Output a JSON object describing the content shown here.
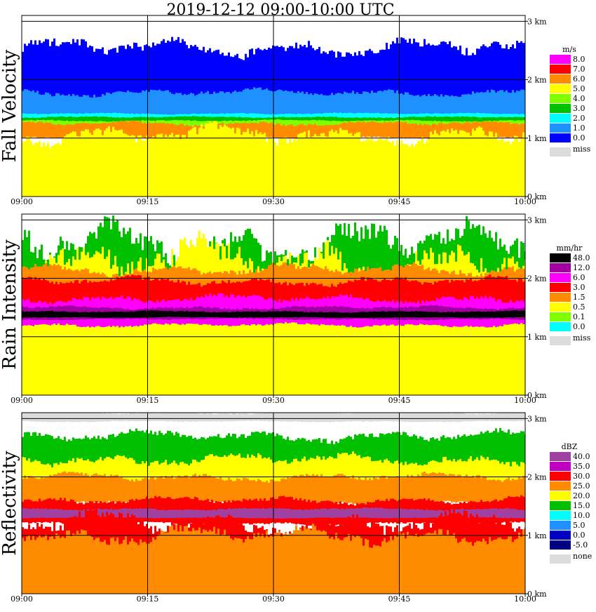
{
  "title": "2019-12-12   09:00-10:00 UTC",
  "chart_data": [
    {
      "type": "heatmap",
      "name": "Fall Velocity",
      "ylabel": "Fall Velocity",
      "x_ticks": [
        "09:00",
        "09:15",
        "09:30",
        "09:45",
        "10:00"
      ],
      "y_ticks": [
        "0 km",
        "1 km",
        "2 km",
        "3 km"
      ],
      "ylim": [
        0,
        3.1
      ],
      "legend": {
        "title": "m/s",
        "entries": [
          {
            "label": "8.0",
            "color": "#ff00ff"
          },
          {
            "label": "7.0",
            "color": "#ff0000"
          },
          {
            "label": "6.0",
            "color": "#ff8c00"
          },
          {
            "label": "5.0",
            "color": "#ffff00"
          },
          {
            "label": "4.0",
            "color": "#80ff00"
          },
          {
            "label": "3.0",
            "color": "#00c000"
          },
          {
            "label": "2.0",
            "color": "#00ffff"
          },
          {
            "label": "1.0",
            "color": "#1e90ff"
          },
          {
            "label": "0.0",
            "color": "#0000ff"
          }
        ],
        "missing": {
          "label": "miss",
          "color": "#dcdcdc"
        }
      },
      "layers": [
        {
          "color": "#0000ff",
          "bottom": 1.55,
          "top": 2.55
        },
        {
          "color": "#1e90ff",
          "bottom": 1.38,
          "top": 1.78
        },
        {
          "color": "#00ffff",
          "bottom": 1.33,
          "top": 1.42
        },
        {
          "color": "#00c000",
          "bottom": 1.27,
          "top": 1.36
        },
        {
          "color": "#80ff00",
          "bottom": 1.2,
          "top": 1.3
        },
        {
          "color": "#ff8c00",
          "bottom": 1.0,
          "top": 1.25
        },
        {
          "color": "#ffff00",
          "bottom": 0.0,
          "top": 1.05
        }
      ]
    },
    {
      "type": "heatmap",
      "name": "Rain Intensity",
      "ylabel": "Rain Intensity",
      "x_ticks": [
        "09:00",
        "09:15",
        "09:30",
        "09:45",
        "10:00"
      ],
      "y_ticks": [
        "0 km",
        "1 km",
        "2 km",
        "3 km"
      ],
      "ylim": [
        0,
        3.1
      ],
      "legend": {
        "title": "mm/hr",
        "entries": [
          {
            "label": "48.0",
            "color": "#000000"
          },
          {
            "label": "12.0",
            "color": "#a000a0"
          },
          {
            "label": "6.0",
            "color": "#ff00ff"
          },
          {
            "label": "3.0",
            "color": "#ff0000"
          },
          {
            "label": "1.5",
            "color": "#ff8c00"
          },
          {
            "label": "0.5",
            "color": "#ffff00"
          },
          {
            "label": "0.1",
            "color": "#80ff00"
          },
          {
            "label": "0.0",
            "color": "#00ffff"
          }
        ],
        "missing": {
          "label": "miss",
          "color": "#dcdcdc"
        }
      },
      "layers": [
        {
          "color": "#00c000",
          "bottom": 0.3,
          "top": 2.6
        },
        {
          "color": "#ffff00",
          "bottom": 0.0,
          "top": 2.3
        },
        {
          "color": "#ff8c00",
          "bottom": 1.5,
          "top": 2.15
        },
        {
          "color": "#ff0000",
          "bottom": 1.45,
          "top": 1.95
        },
        {
          "color": "#ff00ff",
          "bottom": 1.2,
          "top": 1.65
        },
        {
          "color": "#a000a0",
          "bottom": 1.3,
          "top": 1.5
        },
        {
          "color": "#000000",
          "bottom": 1.33,
          "top": 1.43
        }
      ]
    },
    {
      "type": "heatmap",
      "name": "Reflectivity",
      "ylabel": "Reflectivity",
      "x_ticks": [
        "09:00",
        "09:15",
        "09:30",
        "09:45",
        "10:00"
      ],
      "y_ticks": [
        "0 km",
        "1 km",
        "2 km",
        "3 km"
      ],
      "ylim": [
        0,
        3.1
      ],
      "legend": {
        "title": "dBZ",
        "entries": [
          {
            "label": "40.0",
            "color": "#a040a0"
          },
          {
            "label": "35.0",
            "color": "#c000c0"
          },
          {
            "label": "30.0",
            "color": "#ff0000"
          },
          {
            "label": "25.0",
            "color": "#ff8c00"
          },
          {
            "label": "20.0",
            "color": "#ffff00"
          },
          {
            "label": "15.0",
            "color": "#00c000"
          },
          {
            "label": "10.0",
            "color": "#00ffff"
          },
          {
            "label": "5.0",
            "color": "#1e90ff"
          },
          {
            "label": "0.0",
            "color": "#0000c0"
          },
          {
            "label": "-5.0",
            "color": "#000080"
          }
        ],
        "missing": {
          "label": "none",
          "color": "#dcdcdc"
        }
      },
      "layers": [
        {
          "color": "#dcdcdc",
          "bottom": 2.95,
          "top": 3.1
        },
        {
          "color": "#00c000",
          "bottom": 2.1,
          "top": 2.7
        },
        {
          "color": "#ffff00",
          "bottom": 1.65,
          "top": 2.3
        },
        {
          "color": "#ff8c00",
          "bottom": 1.55,
          "top": 2.0
        },
        {
          "color": "#ff0000",
          "bottom": 1.2,
          "top": 1.6
        },
        {
          "color": "#a040a0",
          "bottom": 1.3,
          "top": 1.45
        },
        {
          "color": "#ff0000",
          "bottom": 0.0,
          "top": 1.2
        },
        {
          "color": "#ff8c00",
          "bottom": 0.0,
          "top": 1.0
        }
      ]
    }
  ]
}
